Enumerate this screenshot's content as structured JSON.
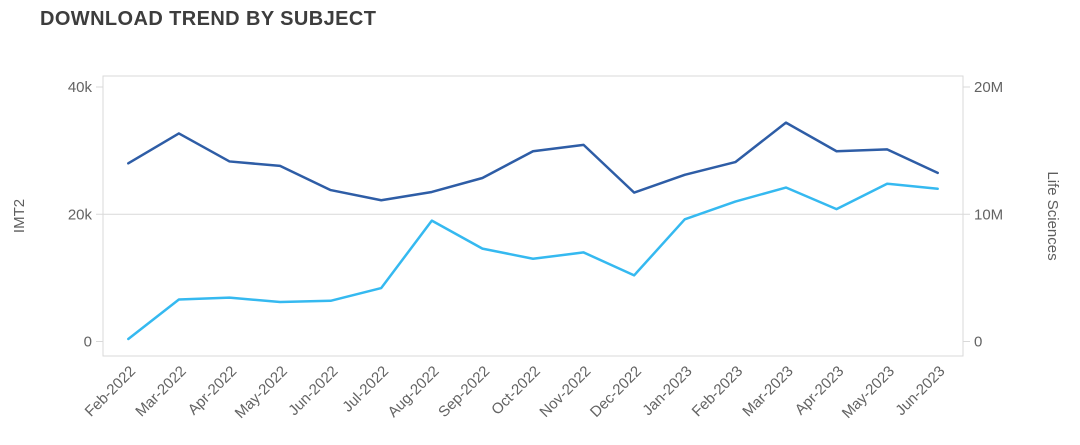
{
  "chart_data": {
    "type": "line",
    "title": "DOWNLOAD TREND BY SUBJECT",
    "categories": [
      "Feb-2022",
      "Mar-2022",
      "Apr-2022",
      "May-2022",
      "Jun-2022",
      "Jul-2022",
      "Aug-2022",
      "Sep-2022",
      "Oct-2022",
      "Nov-2022",
      "Dec-2022",
      "Jan-2023",
      "Feb-2023",
      "Mar-2023",
      "Apr-2023",
      "May-2023",
      "Jun-2023"
    ],
    "series": [
      {
        "name": "IMT2",
        "axis": "left",
        "color": "#2e5da6",
        "values": [
          28000,
          32700,
          28300,
          27600,
          23800,
          22200,
          23500,
          25700,
          29900,
          30900,
          23400,
          26200,
          28200,
          34400,
          29900,
          30200,
          26500
        ]
      },
      {
        "name": "Life Sciences",
        "axis": "right",
        "color": "#35b9f0",
        "values": [
          200000,
          3300000,
          3450000,
          3100000,
          3200000,
          4200000,
          9500000,
          7300000,
          6500000,
          7000000,
          5200000,
          9600000,
          11000000,
          12100000,
          10400000,
          12400000,
          12000000
        ]
      }
    ],
    "left_axis": {
      "title": "IMT2",
      "min": 0,
      "max": 40000,
      "tick_values": [
        0,
        20000,
        40000
      ],
      "tick_labels": [
        "0",
        "20k",
        "40k"
      ]
    },
    "right_axis": {
      "title": "Life Sciences",
      "min": 0,
      "max": 20000000,
      "tick_values": [
        0,
        10000000,
        20000000
      ],
      "tick_labels": [
        "0",
        "10M",
        "20M"
      ]
    },
    "legend": "none",
    "grid": "single horizontal gridline at middle tick",
    "style": {
      "frame_color": "#d9d9d9",
      "grid_color": "#d9d9d9",
      "tick_text_color": "#636363",
      "axis_title_color": "#5e5e5e",
      "title_color": "#3d3d3d",
      "background": "#ffffff",
      "line_width": 2.5
    }
  }
}
